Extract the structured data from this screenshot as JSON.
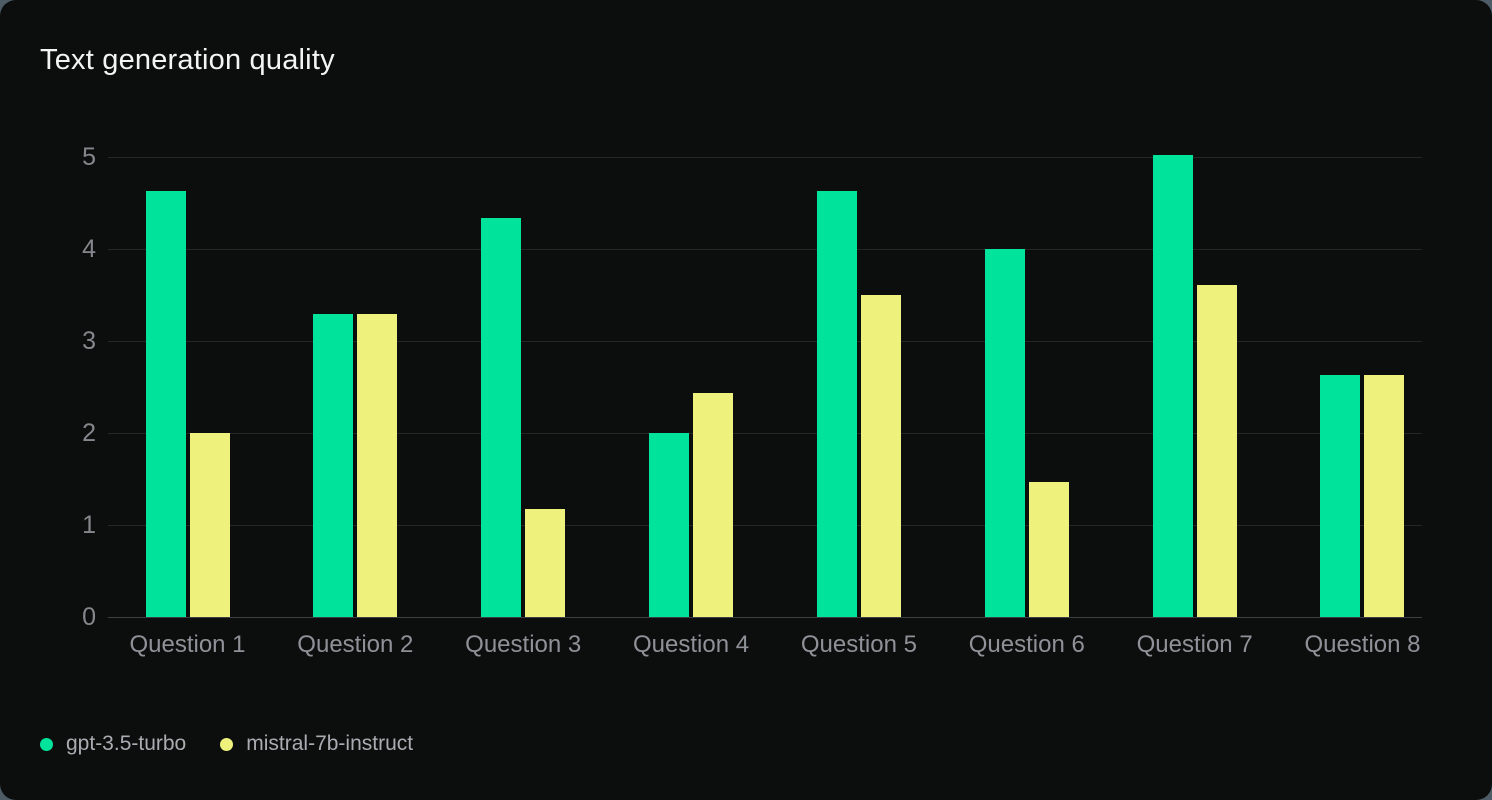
{
  "header": {
    "title": "Text generation quality"
  },
  "chart_data": {
    "type": "bar",
    "title": "Text generation quality",
    "categories": [
      "Question 1",
      "Question 2",
      "Question 3",
      "Question 4",
      "Question 5",
      "Question 6",
      "Question 7",
      "Question 8"
    ],
    "series": [
      {
        "name": "gpt-3.5-turbo",
        "color": "#00e39b",
        "values": [
          4.63,
          3.29,
          4.33,
          2.0,
          4.63,
          4.0,
          5.02,
          2.63
        ]
      },
      {
        "name": "mistral-7b-instruct",
        "color": "#eef17b",
        "values": [
          2.0,
          3.29,
          1.17,
          2.43,
          3.5,
          1.47,
          3.61,
          2.63
        ]
      }
    ],
    "xlabel": "",
    "ylabel": "",
    "ylim": [
      0,
      5
    ],
    "yticks": [
      0,
      1,
      2,
      3,
      4,
      5
    ],
    "grid": true,
    "legend_position": "bottom-left"
  },
  "colors": {
    "card_background": "#0c0e0d",
    "page_background": "#4d5c66",
    "gridline": "#242726",
    "baseline": "#3b3f41",
    "y_tick_text": "#84888d",
    "x_label_text": "#8e9298",
    "title_text": "#f3f4f4",
    "legend_text": "#a9adb2"
  }
}
